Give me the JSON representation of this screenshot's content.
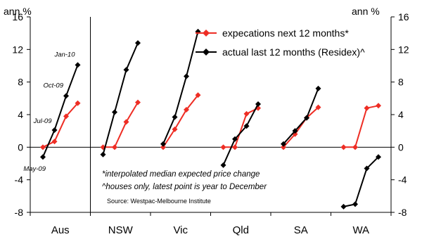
{
  "chart_data": {
    "type": "line",
    "title": "",
    "ylim": [
      -8,
      16
    ],
    "yticks": [
      -8,
      -4,
      0,
      4,
      8,
      12,
      16
    ],
    "y_unit_left": "ann %",
    "y_unit_right": "ann %",
    "categories": [
      "Aus",
      "NSW",
      "Vic",
      "Qld",
      "SA",
      "WA"
    ],
    "period_labels": [
      "May-09",
      "Jul-09",
      "Oct-09",
      "Jan-10"
    ],
    "series": [
      {
        "name": "expecations next 12 months*",
        "color": "#ee2d24",
        "values": {
          "Aus": [
            0,
            0.7,
            3.8,
            5.4
          ],
          "NSW": [
            0,
            0,
            3.1,
            5.5
          ],
          "Vic": [
            0,
            2.2,
            4.6,
            6.4
          ],
          "Qld": [
            0,
            0,
            4.1,
            4.8
          ],
          "SA": [
            0,
            1.6,
            3.6,
            4.9
          ],
          "WA": [
            0,
            0,
            4.8,
            5.1
          ]
        }
      },
      {
        "name": "actual last 12 months (Residex)^",
        "color": "#000000",
        "values": {
          "Aus": [
            -1.2,
            2.1,
            6.3,
            10.1
          ],
          "NSW": [
            -0.9,
            4.3,
            9.5,
            12.8
          ],
          "Vic": [
            0.4,
            3.7,
            8.7,
            14.2
          ],
          "Qld": [
            -2.2,
            1.0,
            2.6,
            5.3
          ],
          "SA": [
            0.4,
            2.0,
            3.6,
            7.2
          ],
          "WA": [
            -7.3,
            -7.0,
            -2.6,
            -1.2
          ]
        }
      }
    ],
    "legend_position": "top-right",
    "grid": false
  },
  "notes": {
    "line1": "*interpolated median expected price change",
    "line2": "^houses only, latest point is year to December",
    "source": "Source: Westpac-Melbourne Institute"
  }
}
